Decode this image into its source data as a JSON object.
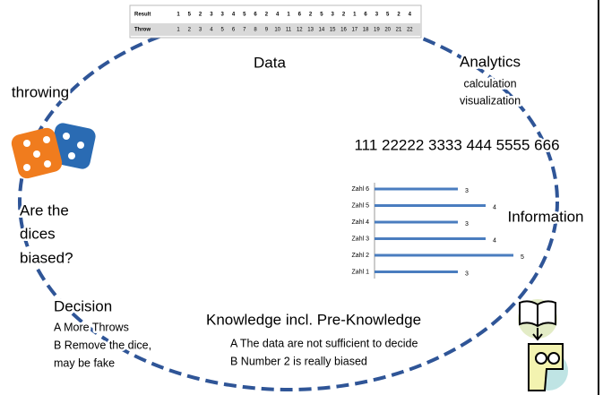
{
  "table": {
    "rows": [
      {
        "label": "Result",
        "values": [
          1,
          5,
          2,
          3,
          3,
          4,
          5,
          6,
          2,
          4,
          1,
          6,
          2,
          5,
          3,
          2,
          1,
          6,
          3,
          5,
          2,
          4
        ]
      },
      {
        "label": "Throw",
        "values": [
          1,
          2,
          3,
          4,
          5,
          6,
          7,
          8,
          9,
          10,
          11,
          12,
          13,
          14,
          15,
          16,
          17,
          18,
          19,
          20,
          21,
          22
        ]
      }
    ]
  },
  "labels": {
    "data": "Data",
    "analytics": "Analytics",
    "analytics_items": [
      "calculation",
      "visualization"
    ],
    "sequence": "111 22222 3333 444 5555 666",
    "information": "Information",
    "throwing": "throwing",
    "question": [
      "Are the",
      "dices",
      "biased?"
    ],
    "decision": {
      "title": "Decision",
      "items": [
        "A More Throws",
        "B Remove the dice,",
        "may be fake"
      ]
    },
    "knowledge": {
      "title": "Knowledge incl. Pre-Knowledge",
      "items": [
        "A The data are not sufficient to decide",
        "B Number 2 is really biased"
      ]
    }
  },
  "bar_chart": {
    "categories": [
      "Zahl 6",
      "Zahl 5",
      "Zahl 4",
      "Zahl 3",
      "Zahl 2",
      "Zahl 1"
    ],
    "values": [
      3,
      4,
      3,
      4,
      5,
      3
    ],
    "color": "#4a7dbf"
  }
}
